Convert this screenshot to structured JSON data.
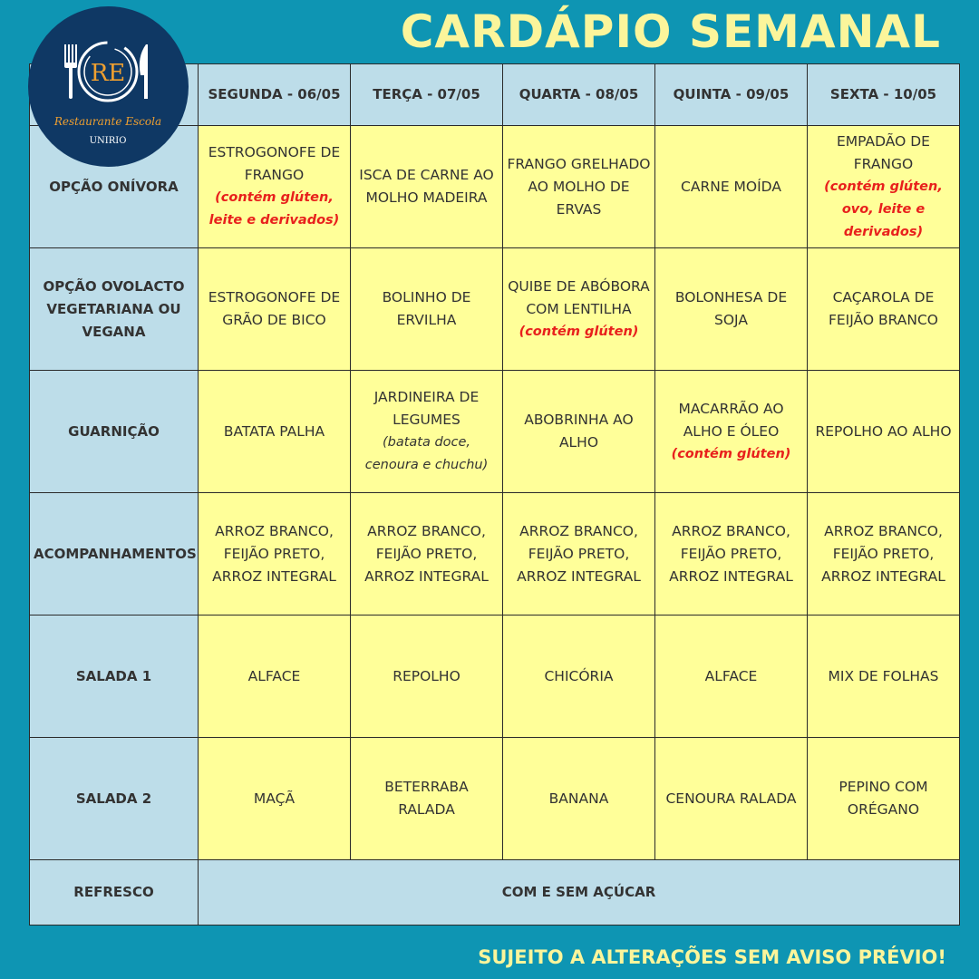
{
  "title": "CARDÁPIO SEMANAL",
  "footer": "SUJEITO A ALTERAÇÕES SEM AVISO PRÉVIO!",
  "logo": {
    "monogram": "RE",
    "name": "Restaurante Escola",
    "org": "UNIRIO"
  },
  "colors": {
    "background": "#0e95b3",
    "header": "#bddde9",
    "cell": "#ffff99",
    "warning": "#e8201c",
    "title": "#fbf59b"
  },
  "days": [
    "SEGUNDA - 06/05",
    "TERÇA - 07/05",
    "QUARTA - 08/05",
    "QUINTA - 09/05",
    "SEXTA - 10/05"
  ],
  "rows": [
    {
      "label": "OPÇÃO ONÍVORA",
      "cells": [
        {
          "text": "ESTROGONOFE DE FRANGO",
          "note": "(contém glúten, leite e derivados)"
        },
        {
          "text": "ISCA DE CARNE AO MOLHO MADEIRA"
        },
        {
          "text": "FRANGO GRELHADO AO MOLHO DE ERVAS"
        },
        {
          "text": "CARNE MOÍDA"
        },
        {
          "text": "EMPADÃO DE FRANGO",
          "note": "(contém glúten, ovo, leite e derivados)"
        }
      ]
    },
    {
      "label": "OPÇÃO OVOLACTO VEGETARIANA OU VEGANA",
      "cells": [
        {
          "text": "ESTROGONOFE DE GRÃO DE BICO"
        },
        {
          "text": "BOLINHO DE ERVILHA"
        },
        {
          "text": "QUIBE DE ABÓBORA COM LENTILHA",
          "note": "(contém glúten)"
        },
        {
          "text": "BOLONHESA DE SOJA"
        },
        {
          "text": "CAÇAROLA DE FEIJÃO BRANCO"
        }
      ]
    },
    {
      "label": "GUARNIÇÃO",
      "cells": [
        {
          "text": "BATATA PALHA"
        },
        {
          "text": "JARDINEIRA DE LEGUMES",
          "sub": "(batata doce, cenoura e chuchu)"
        },
        {
          "text": "ABOBRINHA AO ALHO"
        },
        {
          "text": "MACARRÃO AO ALHO E ÓLEO",
          "note": "(contém glúten)"
        },
        {
          "text": "REPOLHO AO ALHO"
        }
      ]
    },
    {
      "label": "ACOMPANHAMENTOS",
      "cells": [
        {
          "text": "ARROZ BRANCO, FEIJÃO PRETO, ARROZ INTEGRAL"
        },
        {
          "text": "ARROZ BRANCO, FEIJÃO PRETO, ARROZ INTEGRAL"
        },
        {
          "text": "ARROZ BRANCO, FEIJÃO PRETO, ARROZ INTEGRAL"
        },
        {
          "text": "ARROZ BRANCO, FEIJÃO PRETO, ARROZ INTEGRAL"
        },
        {
          "text": "ARROZ BRANCO, FEIJÃO PRETO, ARROZ INTEGRAL"
        }
      ]
    },
    {
      "label": "SALADA 1",
      "cells": [
        {
          "text": "ALFACE"
        },
        {
          "text": "REPOLHO"
        },
        {
          "text": "CHICÓRIA"
        },
        {
          "text": "ALFACE"
        },
        {
          "text": "MIX DE FOLHAS"
        }
      ]
    },
    {
      "label": "SALADA 2",
      "cells": [
        {
          "text": "MAÇÃ"
        },
        {
          "text": "BETERRABA RALADA"
        },
        {
          "text": "BANANA"
        },
        {
          "text": "CENOURA RALADA"
        },
        {
          "text": "PEPINO COM ORÉGANO"
        }
      ]
    }
  ],
  "refresco": {
    "label": "REFRESCO",
    "value": "COM E SEM AÇÚCAR"
  }
}
